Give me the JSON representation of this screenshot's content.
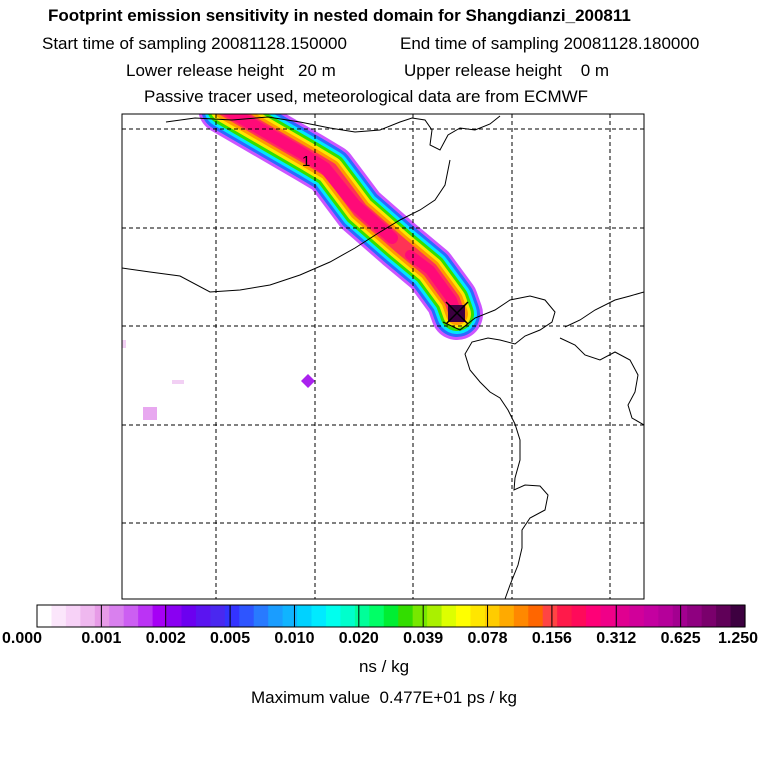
{
  "header": {
    "title": "Footprint emission sensitivity in nested domain for Shangdianzi_200811",
    "start_time": "Start time of sampling 20081128.150000",
    "end_time": "End time of sampling 20081128.180000",
    "lower_height": "Lower release height   20 m",
    "upper_height": "Upper release height    0 m",
    "tracer_note": "Passive tracer used, meteorological data are from ECMWF"
  },
  "map": {
    "plume_marker_label": "1",
    "receptor_marker": "×"
  },
  "colorbar": {
    "labels": [
      "0.000",
      "0.001",
      "0.002",
      "0.005",
      "0.010",
      "0.020",
      "0.039",
      "0.078",
      "0.156",
      "0.312",
      "0.625",
      "1.250"
    ],
    "colors": [
      "#ffffff",
      "#fbe6fb",
      "#f7d2f7",
      "#efb8ef",
      "#e79be7",
      "#d980ee",
      "#cc5ff2",
      "#bb33f5",
      "#a600f5",
      "#8a00f2",
      "#6c00f0",
      "#5b14f0",
      "#4a28f0",
      "#3333ff",
      "#2e55ff",
      "#287aff",
      "#1a9dff",
      "#10b4ff",
      "#00d2ff",
      "#00eaff",
      "#00ffee",
      "#00ffcc",
      "#00ff99",
      "#00ff66",
      "#00ee33",
      "#33dd00",
      "#77e800",
      "#aaf000",
      "#ddff00",
      "#ffff00",
      "#ffe600",
      "#ffcc00",
      "#ffaa00",
      "#ff8800",
      "#ff6600",
      "#ff4444",
      "#ff1a4a",
      "#ff0a5a",
      "#ff0077",
      "#f00088",
      "#e00090",
      "#d1009a",
      "#c400a0",
      "#b5009a",
      "#a30090",
      "#8f0080",
      "#7a006c",
      "#600058",
      "#3d0040"
    ],
    "unit": "ns / kg"
  },
  "footer": {
    "max_value": "Maximum value  0.477E+01 ps / kg"
  }
}
